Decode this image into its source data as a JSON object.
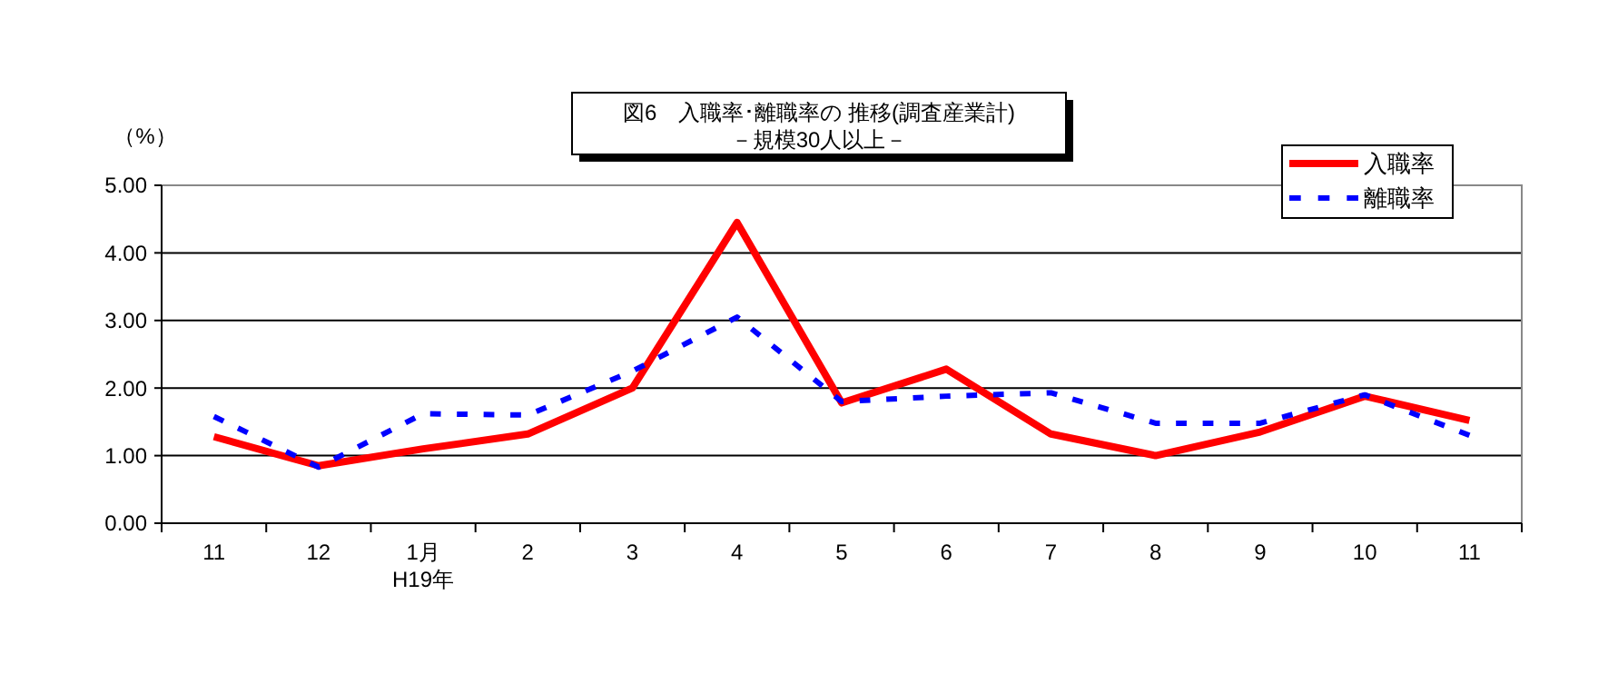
{
  "chart_data": {
    "type": "line",
    "title": "図6　入職率･離職率の 推移(調査産業計)\n－規模30人以上－",
    "ylabel": "（%）",
    "categories": [
      "11",
      "12",
      "1月\nH19年",
      "2",
      "3",
      "4",
      "5",
      "6",
      "7",
      "8",
      "9",
      "10",
      "11"
    ],
    "series": [
      {
        "name": "入職率",
        "color": "#ff0000",
        "line_style": "solid",
        "values": [
          1.28,
          0.85,
          1.1,
          1.32,
          2.0,
          4.45,
          1.78,
          2.28,
          1.32,
          1.0,
          1.35,
          1.88,
          1.52
        ]
      },
      {
        "name": "離職率",
        "color": "#0000ff",
        "line_style": "dotted",
        "values": [
          1.58,
          0.83,
          1.62,
          1.6,
          2.25,
          3.05,
          1.8,
          1.88,
          1.93,
          1.48,
          1.48,
          1.9,
          1.3
        ]
      }
    ],
    "ylim": [
      0,
      5
    ],
    "yticks": [
      {
        "value": 0,
        "label": "0.00"
      },
      {
        "value": 1,
        "label": "1.00"
      },
      {
        "value": 2,
        "label": "2.00"
      },
      {
        "value": 3,
        "label": "3.00"
      },
      {
        "value": 4,
        "label": "4.00"
      },
      {
        "value": 5,
        "label": "5.00"
      }
    ],
    "grid": "y",
    "legend": "top right",
    "marker": "none"
  }
}
